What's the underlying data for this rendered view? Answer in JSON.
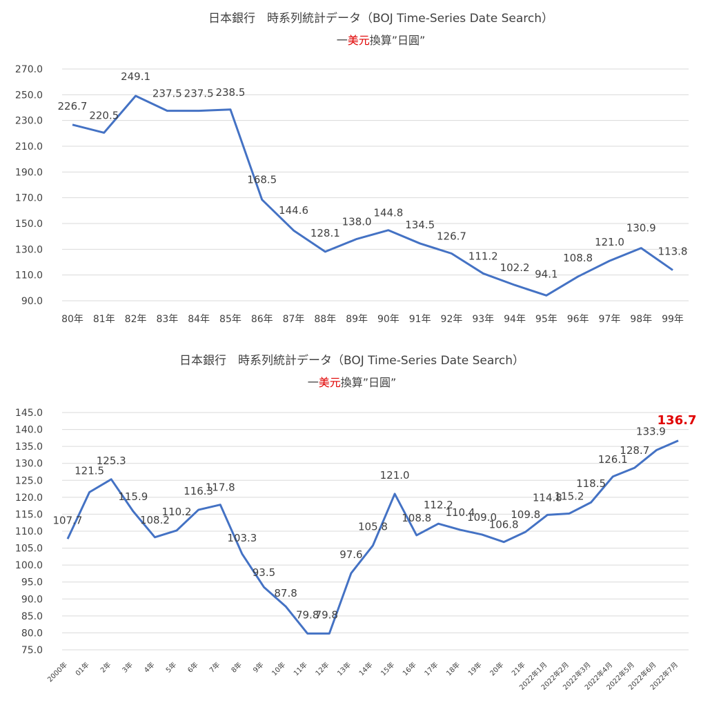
{
  "chart_data": [
    {
      "type": "line",
      "title": "日本銀行　時系列統計データ（BOJ Time-Series Date Search）",
      "subtitle_parts": [
        "一",
        "美元",
        "換算”日圓”"
      ],
      "categories": [
        "80年",
        "81年",
        "82年",
        "83年",
        "84年",
        "85年",
        "86年",
        "87年",
        "88年",
        "89年",
        "90年",
        "91年",
        "92年",
        "93年",
        "94年",
        "95年",
        "96年",
        "97年",
        "98年",
        "99年"
      ],
      "values": [
        226.7,
        220.5,
        249.1,
        237.5,
        237.5,
        238.5,
        168.5,
        144.6,
        128.1,
        138.0,
        144.8,
        134.5,
        126.7,
        111.2,
        102.2,
        94.1,
        108.8,
        121.0,
        130.9,
        113.8
      ],
      "value_labels": [
        "226.7",
        "220.5",
        "249.1",
        "237.5",
        "237.5",
        "238.5",
        "168.5",
        "144.6",
        "128.1",
        "138.0",
        "144.8",
        "134.5",
        "126.7",
        "111.2",
        "102.2",
        "94.1",
        "108.8",
        "121.0",
        "130.9",
        "113.8"
      ],
      "yticks": [
        "270.0",
        "250.0",
        "230.0",
        "210.0",
        "190.0",
        "170.0",
        "150.0",
        "130.0",
        "110.0",
        "90.0"
      ],
      "ylim": [
        90,
        270
      ],
      "grid": true,
      "colors": {
        "line": "#4472c4",
        "highlight": "#e00000"
      }
    },
    {
      "type": "line",
      "title": "日本銀行　時系列統計データ（BOJ Time-Series Date Search）",
      "subtitle_parts": [
        "一",
        "美元",
        "換算”日圓”"
      ],
      "categories": [
        "2000年",
        "01年",
        "2年",
        "3年",
        "4年",
        "5年",
        "6年",
        "7年",
        "8年",
        "9年",
        "10年",
        "11年",
        "12年",
        "13年",
        "14年",
        "15年",
        "16年",
        "17年",
        "18年",
        "19年",
        "20年",
        "21年",
        "2022年1月",
        "2022年2月",
        "2022年3月",
        "2022年4月",
        "2022年5月",
        "2022年6月",
        "2022年7月"
      ],
      "values": [
        107.7,
        121.5,
        125.3,
        115.9,
        108.2,
        110.2,
        116.3,
        117.8,
        103.3,
        93.5,
        87.8,
        79.8,
        79.8,
        97.6,
        105.8,
        121.0,
        108.8,
        112.2,
        110.4,
        109.0,
        106.8,
        109.8,
        114.8,
        115.2,
        118.5,
        126.1,
        128.7,
        133.9,
        136.7
      ],
      "value_labels": [
        "107.7",
        "121.5",
        "125.3",
        "115.9",
        "108.2",
        "110.2",
        "116.3",
        "117.8",
        "103.3",
        "93.5",
        "87.8",
        "79.8",
        "79.8",
        "97.6",
        "105.8",
        "121.0",
        "108.8",
        "112.2",
        "110.4",
        "109.0",
        "106.8",
        "109.8",
        "114.8",
        "115.2",
        "118.5",
        "126.1",
        "128.7",
        "133.9",
        "136.7"
      ],
      "yticks": [
        "145.0",
        "140.0",
        "135.0",
        "130.0",
        "125.0",
        "120.0",
        "115.0",
        "110.0",
        "105.0",
        "100.0",
        "95.0",
        "90.0",
        "85.0",
        "80.0",
        "75.0"
      ],
      "ylim": [
        75,
        145
      ],
      "grid": true,
      "highlight_last": true,
      "colors": {
        "line": "#4472c4",
        "highlight": "#e00000"
      }
    }
  ]
}
